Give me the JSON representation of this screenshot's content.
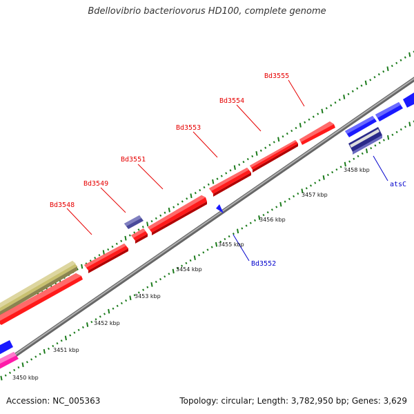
{
  "title": "Bdellovibrio bacteriovorus HD100, complete genome",
  "footer": {
    "accession": "Accession: NC_005363",
    "summary": "Topology: circular; Length: 3,782,950 bp; Genes: 3,629"
  },
  "colors": {
    "forward_gene": "#ff1a1a",
    "reverse_gene": "#1a1aff",
    "rna_gene": "#2a2aff",
    "other_gene": "#c8c070",
    "magenta_gene": "#ff1aa8",
    "dark_gene": "#4a4a9a",
    "label_red": "#e60000",
    "label_blue": "#0000cc",
    "tick": "#1a7a1a",
    "backbone": "#888888"
  },
  "scale_labels": [
    "3450 kbp",
    "3451 kbp",
    "3452 kbp",
    "3453 kbp",
    "3454 kbp",
    "3455 kbp",
    "3456 kbp",
    "3457 kbp",
    "3458 kbp"
  ],
  "gene_labels": [
    {
      "text": "Bd3548",
      "color": "red"
    },
    {
      "text": "Bd3549",
      "color": "red"
    },
    {
      "text": "Bd3551",
      "color": "red"
    },
    {
      "text": "Bd3553",
      "color": "red"
    },
    {
      "text": "Bd3554",
      "color": "red"
    },
    {
      "text": "Bd3555",
      "color": "red"
    },
    {
      "text": "Bd3552",
      "color": "blue"
    },
    {
      "text": "atsC",
      "color": "blue"
    }
  ]
}
